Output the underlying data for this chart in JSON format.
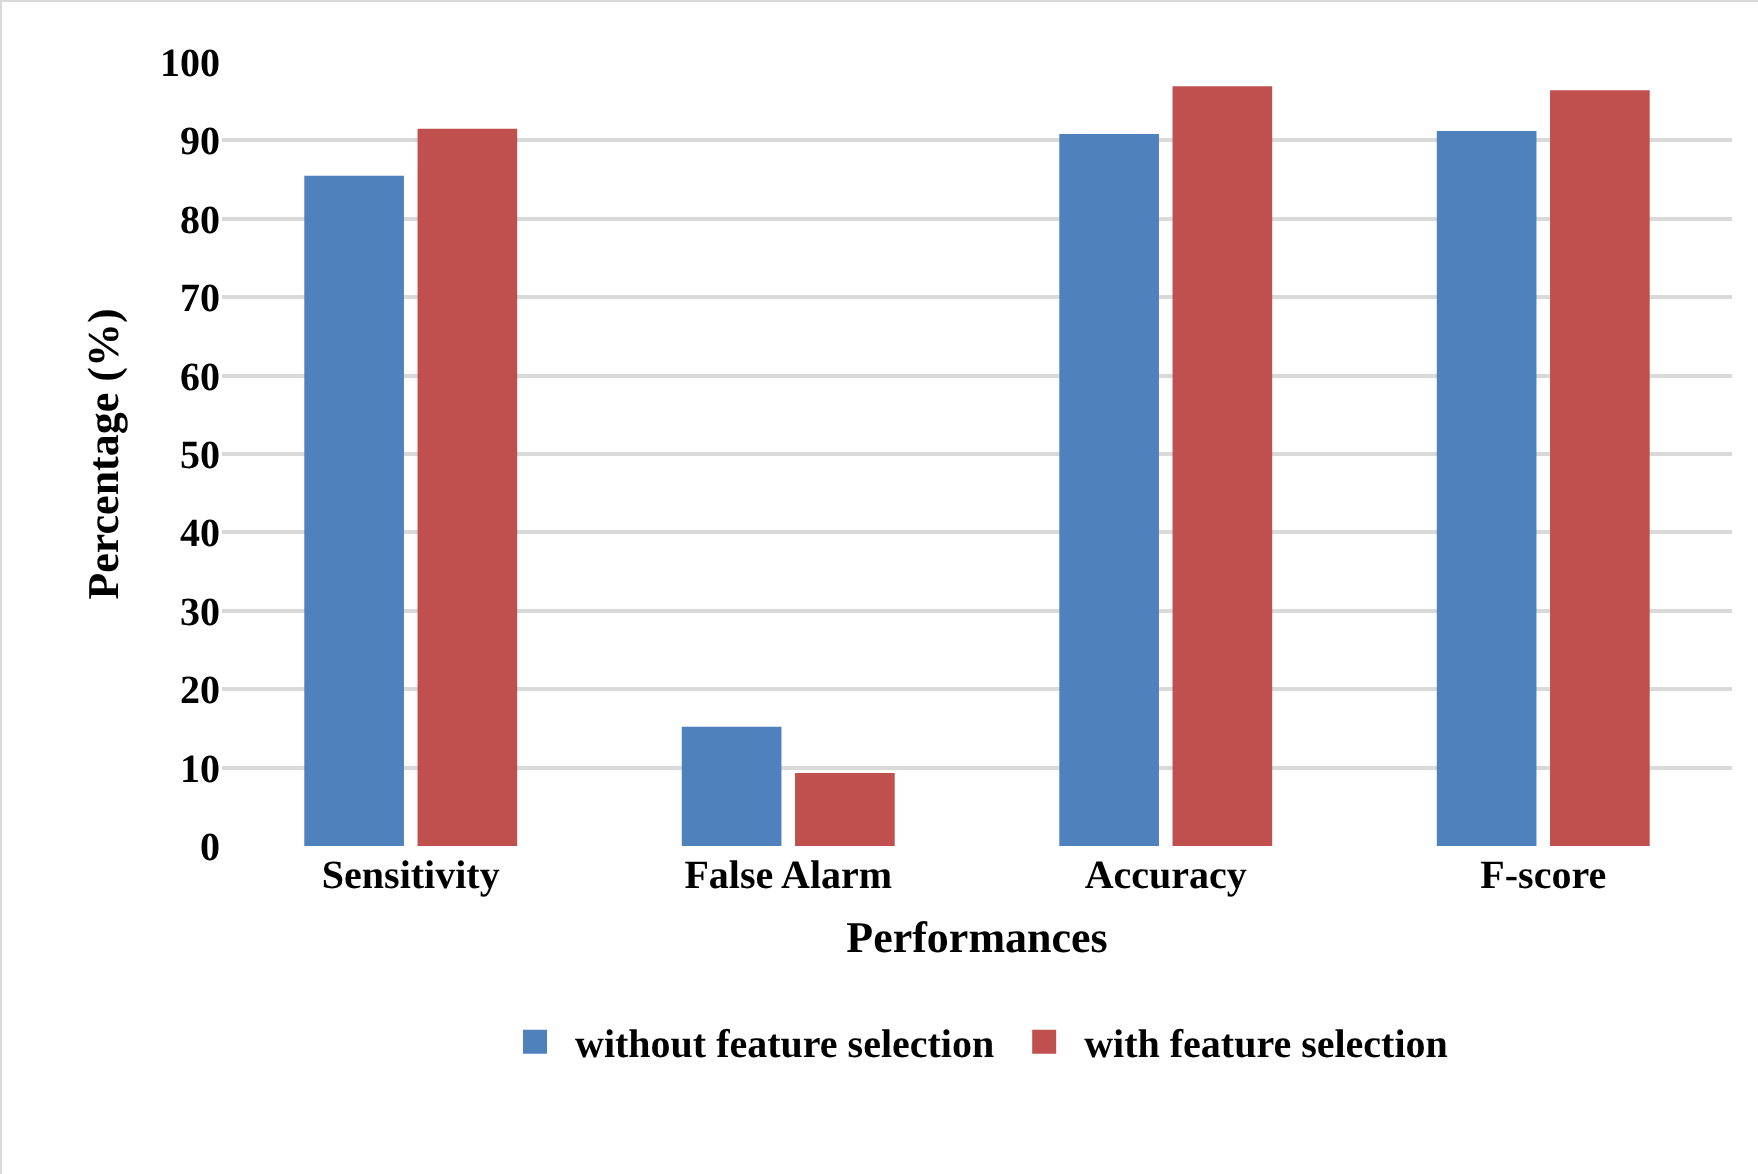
{
  "chart_data": {
    "type": "bar",
    "xlabel": "Performances",
    "ylabel": "Percentage (%)",
    "categories": [
      "Sensitivity",
      "False Alarm",
      "Accuracy",
      "F-score"
    ],
    "series": [
      {
        "name": "without feature selection",
        "color": "#4f81bd",
        "values": [
          85.5,
          15.2,
          90.8,
          91.2
        ]
      },
      {
        "name": "with feature selection",
        "color": "#c0504d",
        "values": [
          91.5,
          9.3,
          96.9,
          96.4
        ]
      }
    ],
    "ylim": [
      0,
      100
    ],
    "yticks": [
      0,
      10,
      20,
      30,
      40,
      50,
      60,
      70,
      80,
      90,
      100
    ],
    "grid": "y",
    "legend": "bottom"
  }
}
